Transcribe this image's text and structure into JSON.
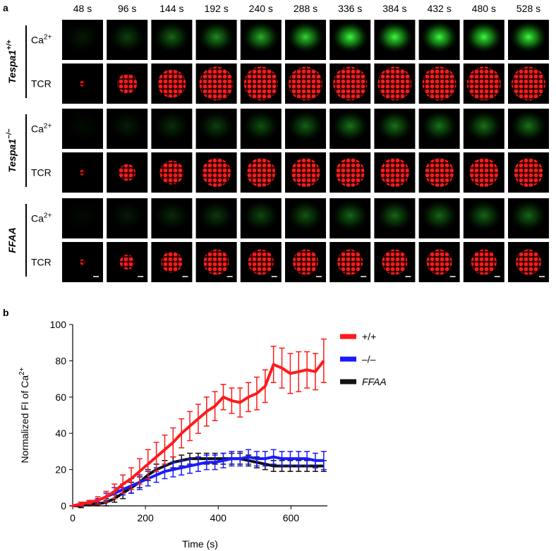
{
  "panel_a": {
    "label": "a",
    "times": [
      "48 s",
      "96 s",
      "144 s",
      "192 s",
      "240 s",
      "288 s",
      "336 s",
      "384 s",
      "432 s",
      "480 s",
      "528 s"
    ],
    "groups": [
      {
        "name": {
          "base": "Tespa1",
          "sup": "+/+"
        },
        "rows": [
          {
            "base": "Ca",
            "sup": "2+"
          },
          {
            "base": "TCR"
          }
        ]
      },
      {
        "name": {
          "base": "Tespa1",
          "sup": "−/−"
        },
        "rows": [
          {
            "base": "Ca",
            "sup": "2+"
          },
          {
            "base": "TCR"
          }
        ]
      },
      {
        "name": {
          "base": "FFAA"
        },
        "rows": [
          {
            "base": "Ca",
            "sup": "2+"
          },
          {
            "base": "TCR"
          }
        ]
      }
    ]
  },
  "panel_b": {
    "label": "b"
  },
  "chart_data": {
    "type": "line",
    "xlabel": "Time (s)",
    "ylabel": {
      "base": "Normalized FI of Ca",
      "sup": "2+"
    },
    "x": [
      0,
      23,
      46,
      69,
      92,
      115,
      138,
      161,
      184,
      207,
      230,
      253,
      276,
      299,
      322,
      345,
      368,
      391,
      414,
      437,
      460,
      483,
      506,
      529,
      552,
      575,
      598,
      621,
      644,
      667,
      690
    ],
    "series": [
      {
        "name": "+/+",
        "color": "#ff1a1a",
        "values": [
          0,
          1,
          2,
          3,
          5,
          8,
          12,
          15,
          19,
          23,
          27,
          31,
          35,
          40,
          44,
          48,
          52,
          55,
          60,
          58,
          57,
          60,
          62,
          66,
          78,
          76,
          73,
          74,
          75,
          74,
          80
        ],
        "errors": [
          0,
          1,
          1,
          2,
          3,
          4,
          5,
          6,
          7,
          8,
          8,
          8,
          8,
          8,
          8,
          8,
          8,
          8,
          7,
          7,
          8,
          8,
          9,
          9,
          10,
          11,
          11,
          11,
          10,
          10,
          12
        ]
      },
      {
        "name": "–/–",
        "color": "#1a1aff",
        "values": [
          0,
          1,
          2,
          3,
          5,
          7,
          9,
          11,
          13,
          15,
          17,
          19,
          20,
          21,
          22,
          23,
          24,
          24,
          25,
          26,
          26,
          27,
          26,
          26,
          27,
          26,
          26,
          26,
          26,
          25,
          25
        ],
        "errors": [
          0,
          1,
          1,
          1,
          2,
          3,
          3,
          4,
          4,
          4,
          4,
          4,
          4,
          4,
          4,
          4,
          4,
          4,
          4,
          4,
          4,
          4,
          4,
          4,
          4,
          4,
          4,
          4,
          4,
          4,
          5
        ]
      },
      {
        "name": "FFAA",
        "color": "#111111",
        "italic": true,
        "values": [
          0,
          0,
          1,
          1,
          2,
          4,
          7,
          10,
          13,
          17,
          20,
          22,
          24,
          25,
          26,
          26,
          26,
          26,
          26,
          26,
          26,
          25,
          24,
          23,
          22,
          22,
          22,
          22,
          22,
          22,
          22
        ],
        "errors": [
          0,
          1,
          1,
          1,
          2,
          2,
          3,
          3,
          3,
          3,
          3,
          3,
          3,
          3,
          3,
          3,
          3,
          3,
          3,
          3,
          3,
          3,
          3,
          3,
          3,
          3,
          3,
          3,
          3,
          3,
          3
        ]
      }
    ],
    "xlim": [
      0,
      700
    ],
    "xticks": [
      0,
      200,
      400,
      600
    ],
    "ylim": [
      0,
      100
    ],
    "yticks": [
      0,
      20,
      40,
      60,
      80,
      100
    ],
    "legend": "right"
  }
}
